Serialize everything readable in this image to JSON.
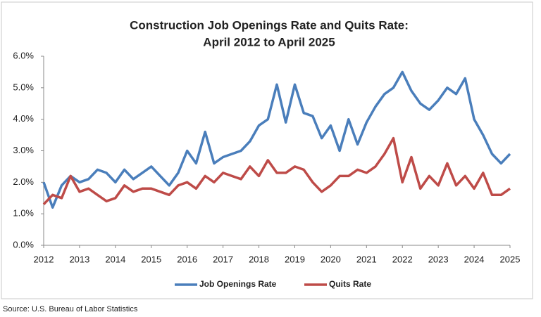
{
  "chart_data": {
    "type": "line",
    "title": "Construction Job Openings Rate and Quits Rate:",
    "subtitle": "April 2012 to April 2025",
    "source": "Source: U.S. Bureau of Labor Statistics",
    "x": [
      2012,
      2012.25,
      2012.5,
      2012.75,
      2013,
      2013.25,
      2013.5,
      2013.75,
      2014,
      2014.25,
      2014.5,
      2014.75,
      2015,
      2015.25,
      2015.5,
      2015.75,
      2016,
      2016.25,
      2016.5,
      2016.75,
      2017,
      2017.25,
      2017.5,
      2017.75,
      2018,
      2018.25,
      2018.5,
      2018.75,
      2019,
      2019.25,
      2019.5,
      2019.75,
      2020,
      2020.25,
      2020.5,
      2020.75,
      2021,
      2021.25,
      2021.5,
      2021.75,
      2022,
      2022.25,
      2022.5,
      2022.75,
      2023,
      2023.25,
      2023.5,
      2023.75,
      2024,
      2024.25,
      2024.5,
      2024.75,
      2025
    ],
    "series": [
      {
        "name": "Job Openings Rate",
        "color": "#4a7ebb",
        "values": [
          2.0,
          1.2,
          1.9,
          2.2,
          2.0,
          2.1,
          2.4,
          2.3,
          2.0,
          2.4,
          2.1,
          2.3,
          2.5,
          2.2,
          1.9,
          2.3,
          3.0,
          2.6,
          3.6,
          2.6,
          2.8,
          2.9,
          3.0,
          3.3,
          3.8,
          4.0,
          5.1,
          3.9,
          5.1,
          4.2,
          4.1,
          3.4,
          3.8,
          3.0,
          4.0,
          3.2,
          3.9,
          4.4,
          4.8,
          5.0,
          5.5,
          4.9,
          4.5,
          4.3,
          4.6,
          5.0,
          4.8,
          5.3,
          4.0,
          3.5,
          2.9,
          2.6,
          2.9
        ]
      },
      {
        "name": "Quits Rate",
        "color": "#be4b48",
        "values": [
          1.3,
          1.6,
          1.5,
          2.2,
          1.7,
          1.8,
          1.6,
          1.4,
          1.5,
          1.9,
          1.7,
          1.8,
          1.8,
          1.7,
          1.6,
          1.9,
          2.0,
          1.8,
          2.2,
          2.0,
          2.3,
          2.2,
          2.1,
          2.5,
          2.2,
          2.7,
          2.3,
          2.3,
          2.5,
          2.4,
          2.0,
          1.7,
          1.9,
          2.2,
          2.2,
          2.4,
          2.3,
          2.5,
          2.9,
          3.4,
          2.0,
          2.8,
          1.8,
          2.2,
          1.9,
          2.6,
          1.9,
          2.2,
          1.8,
          2.3,
          1.6,
          1.6,
          1.8
        ]
      }
    ],
    "xlim": [
      2012,
      2025
    ],
    "xticks": [
      2012,
      2013,
      2014,
      2015,
      2016,
      2017,
      2018,
      2019,
      2020,
      2021,
      2022,
      2023,
      2024,
      2025
    ],
    "ylim": [
      0,
      6
    ],
    "yticks": [
      {
        "value": 0,
        "label": "0.0%"
      },
      {
        "value": 1,
        "label": "1.0%"
      },
      {
        "value": 2,
        "label": "2.0%"
      },
      {
        "value": 3,
        "label": "3.0%"
      },
      {
        "value": 4,
        "label": "4.0%"
      },
      {
        "value": 5,
        "label": "5.0%"
      },
      {
        "value": 6,
        "label": "6.0%"
      }
    ],
    "grid": false,
    "legend": "bottom"
  }
}
